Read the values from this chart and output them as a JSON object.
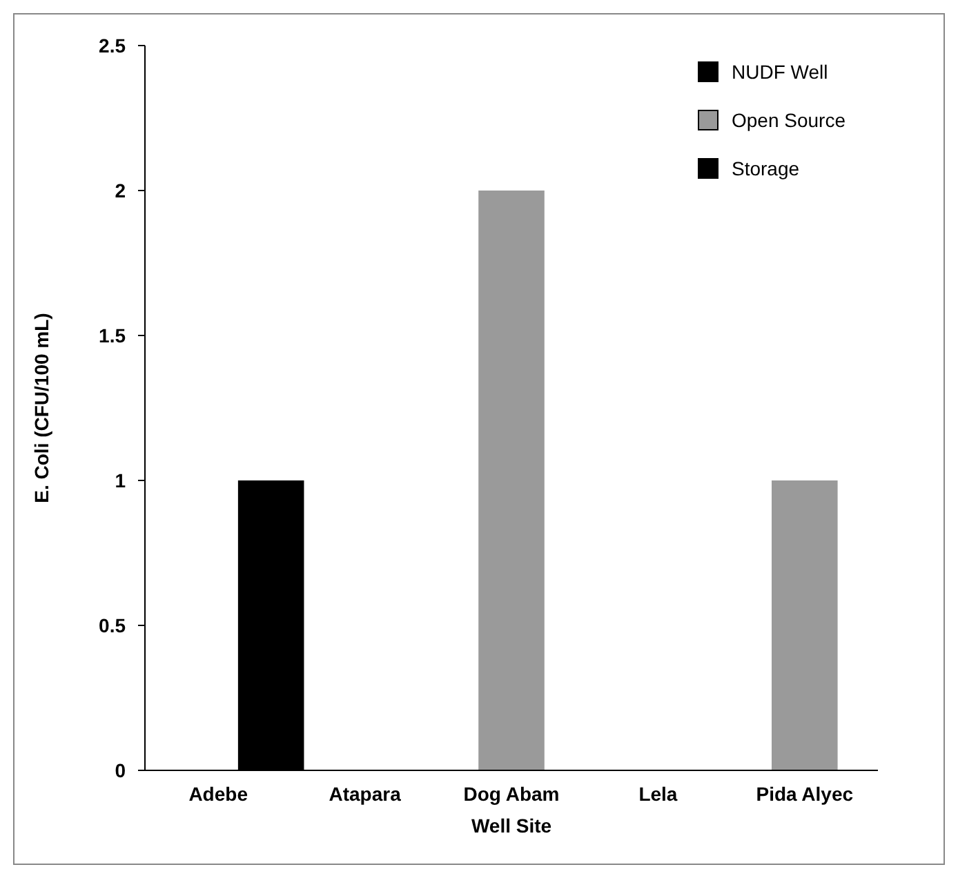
{
  "chart_data": {
    "type": "bar",
    "xlabel": "Well Site",
    "ylabel": "E. Coli (CFU/100 mL)",
    "categories": [
      "Adebe",
      "Atapara",
      "Dog Abam",
      "Lela",
      "Pida Alyec"
    ],
    "series": [
      {
        "name": "NUDF Well",
        "color": "#000000",
        "values": [
          0,
          0,
          0,
          0,
          0
        ]
      },
      {
        "name": "Open Source",
        "color": "#9a9a9a",
        "values": [
          0,
          0,
          2,
          0,
          1
        ]
      },
      {
        "name": "Storage",
        "color": "#000000",
        "values": [
          1,
          0,
          0,
          0,
          0
        ]
      }
    ],
    "ylim": [
      0,
      2.5
    ],
    "yticks": [
      0,
      0.5,
      1,
      1.5,
      2,
      2.5
    ],
    "legend": "top right"
  }
}
